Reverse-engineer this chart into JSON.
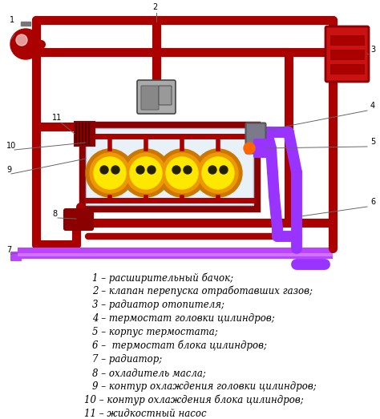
{
  "bg_color": "#ffffff",
  "legend_items": [
    "1 – расширительный бачок;",
    "2 – клапан перепуска отработавших газов;",
    "3 – радиатор отопителя;",
    "4 – термостат головки цилиндров;",
    "5 – корпус термостата;",
    "6 –  термостат блока цилиндров;",
    "7 – радиатор;",
    "8 – охладитель масла;",
    "9 – контур охлаждения головки цилиндров;",
    "10 – контур охлаждения блока цилиндров;",
    "11 – жидкостный насос"
  ],
  "dark_red": "#8B0000",
  "pipe_red": "#AA0000",
  "purple": "#9933FF",
  "bright_purple": "#BB44FF",
  "yellow": "#FFE800",
  "orange": "#DD8800",
  "light_gray_eng": "#E8F0F8",
  "font_size": 8.5
}
